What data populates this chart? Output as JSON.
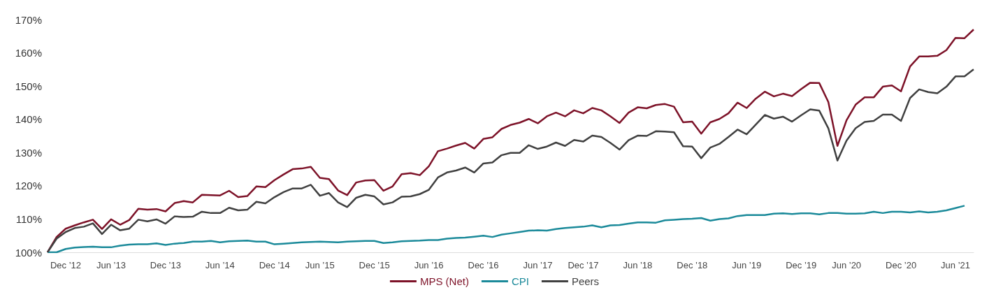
{
  "chart_data": {
    "type": "line",
    "categories": [
      null,
      null,
      "Dec ’12",
      null,
      null,
      null,
      null,
      "Jun ’13",
      null,
      null,
      null,
      null,
      null,
      "Dec ’13",
      null,
      null,
      null,
      null,
      null,
      "Jun ’14",
      null,
      null,
      null,
      null,
      null,
      "Dec ’14",
      null,
      null,
      null,
      null,
      "Jun ’15",
      null,
      null,
      null,
      null,
      null,
      "Dec ’15",
      null,
      null,
      null,
      null,
      null,
      "Jun ’16",
      null,
      null,
      null,
      null,
      null,
      "Dec ’16",
      null,
      null,
      null,
      null,
      null,
      "Jun ’17",
      null,
      null,
      null,
      null,
      "Dec ’17",
      null,
      null,
      null,
      null,
      null,
      "Jun ’18",
      null,
      null,
      null,
      null,
      null,
      "Dec ’18",
      null,
      null,
      null,
      null,
      null,
      "Jun ’19",
      null,
      null,
      null,
      null,
      null,
      "Dec ’19",
      null,
      null,
      null,
      null,
      "Jun ’20",
      null,
      null,
      null,
      null,
      null,
      "Dec ’20",
      null,
      null,
      null,
      null,
      null,
      "Jun ’21",
      null,
      null
    ],
    "series": [
      {
        "name": "MPS (Net)",
        "color": "#7d1228",
        "values": [
          100,
          104.6,
          107.1,
          108.1,
          109.0,
          109.8,
          107.0,
          109.9,
          108.3,
          109.7,
          113.1,
          112.8,
          113.0,
          112.3,
          114.8,
          115.4,
          115.0,
          117.3,
          117.2,
          117.1,
          118.5,
          116.6,
          116.9,
          119.8,
          119.6,
          121.7,
          123.4,
          125.0,
          125.2,
          125.7,
          122.4,
          122.0,
          118.6,
          117.2,
          121.0,
          121.6,
          121.7,
          118.5,
          119.8,
          123.5,
          123.8,
          123.2,
          125.9,
          130.4,
          131.2,
          132.1,
          132.9,
          131.2,
          134.1,
          134.6,
          137.1,
          138.3,
          139.0,
          140.1,
          138.8,
          140.9,
          142.0,
          140.9,
          142.7,
          141.8,
          143.4,
          142.7,
          140.9,
          138.9,
          142.0,
          143.6,
          143.3,
          144.3,
          144.6,
          143.8,
          139.1,
          139.3,
          135.7,
          139.1,
          140.1,
          141.8,
          145.0,
          143.4,
          146.2,
          148.3,
          146.9,
          147.7,
          147.0,
          149.1,
          151.0,
          150.9,
          145.2,
          132.0,
          139.7,
          144.4,
          146.6,
          146.6,
          149.8,
          150.2,
          148.4,
          155.9,
          158.9,
          158.9,
          159.1,
          160.8,
          164.5,
          164.4,
          167.0
        ]
      },
      {
        "name": "CPI",
        "color": "#1b8a9a",
        "values": [
          100,
          100,
          101.0,
          101.4,
          101.6,
          101.7,
          101.5,
          101.5,
          102.0,
          102.3,
          102.4,
          102.4,
          102.7,
          102.2,
          102.6,
          102.8,
          103.2,
          103.2,
          103.4,
          103.0,
          103.3,
          103.4,
          103.5,
          103.2,
          103.2,
          102.4,
          102.6,
          102.8,
          103.0,
          103.1,
          103.2,
          103.1,
          103.0,
          103.2,
          103.3,
          103.4,
          103.4,
          102.8,
          103.0,
          103.3,
          103.4,
          103.5,
          103.7,
          103.7,
          104.1,
          104.3,
          104.4,
          104.7,
          105.0,
          104.6,
          105.3,
          105.7,
          106.1,
          106.5,
          106.6,
          106.5,
          107.0,
          107.3,
          107.5,
          107.7,
          108.1,
          107.5,
          108.1,
          108.2,
          108.6,
          109.0,
          109.0,
          108.9,
          109.6,
          109.8,
          110.0,
          110.1,
          110.3,
          109.5,
          110.0,
          110.2,
          110.9,
          111.2,
          111.2,
          111.2,
          111.6,
          111.7,
          111.5,
          111.7,
          111.7,
          111.4,
          111.8,
          111.8,
          111.6,
          111.6,
          111.7,
          112.2,
          111.8,
          112.2,
          112.2,
          112.0,
          112.3,
          112.0,
          112.2,
          112.6,
          113.3,
          114.0,
          null
        ]
      },
      {
        "name": "Peers",
        "color": "#404040",
        "values": [
          100,
          104.1,
          106.1,
          107.3,
          107.7,
          108.7,
          105.5,
          108.3,
          106.6,
          107.1,
          109.8,
          109.3,
          109.9,
          108.6,
          110.8,
          110.6,
          110.7,
          112.2,
          111.8,
          111.8,
          113.4,
          112.6,
          112.8,
          115.2,
          114.7,
          116.6,
          118.1,
          119.2,
          119.2,
          120.3,
          117.0,
          117.8,
          115.0,
          113.6,
          116.4,
          117.3,
          116.8,
          114.4,
          115.0,
          116.7,
          116.8,
          117.5,
          118.8,
          122.5,
          124.0,
          124.6,
          125.5,
          124.0,
          126.7,
          127.0,
          129.2,
          129.9,
          129.9,
          132.2,
          131.1,
          131.8,
          133.0,
          132.0,
          133.8,
          133.3,
          135.1,
          134.7,
          132.9,
          130.9,
          133.7,
          135.1,
          135.0,
          136.4,
          136.3,
          136.1,
          131.9,
          131.8,
          128.3,
          131.5,
          132.6,
          134.7,
          136.9,
          135.5,
          138.4,
          141.3,
          140.2,
          140.8,
          139.3,
          141.2,
          143.0,
          142.6,
          137.3,
          127.6,
          133.6,
          137.3,
          139.2,
          139.5,
          141.4,
          141.4,
          139.5,
          146.4,
          149.0,
          148.2,
          147.8,
          149.8,
          152.9,
          152.9,
          155.0
        ]
      }
    ],
    "ylim": [
      100,
      170
    ],
    "yticks": [
      {
        "value": 100,
        "label": "100%"
      },
      {
        "value": 110,
        "label": "110%"
      },
      {
        "value": 120,
        "label": "120%"
      },
      {
        "value": 130,
        "label": "130%"
      },
      {
        "value": 140,
        "label": "140%"
      },
      {
        "value": 150,
        "label": "150%"
      },
      {
        "value": 160,
        "label": "160%"
      },
      {
        "value": 170,
        "label": "170%"
      }
    ],
    "grid": false,
    "legend": "bottom",
    "marker": "none",
    "line_style": "solid"
  }
}
